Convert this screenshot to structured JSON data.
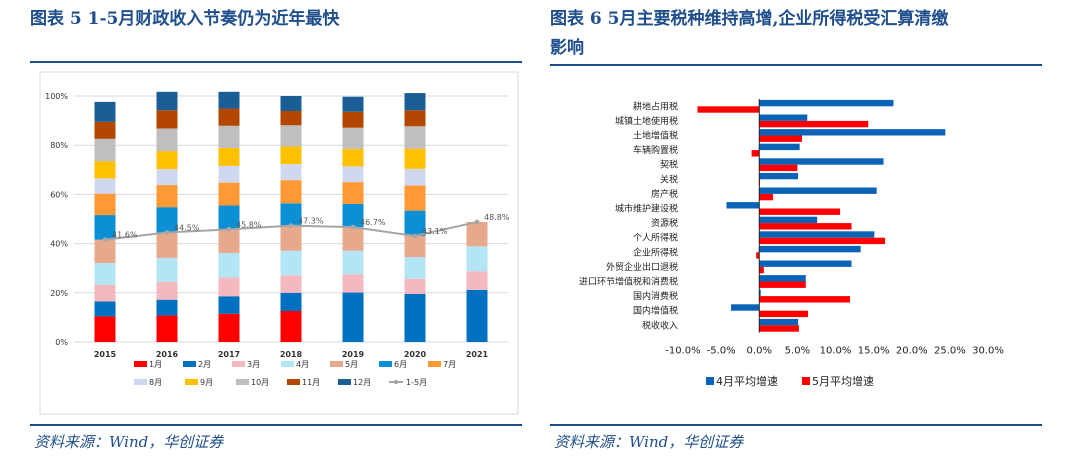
{
  "left": {
    "title": "图表 5   1-5月财政收入节奏仍为近年最快",
    "source": "资料来源：Wind，华创证券",
    "chart_data": {
      "type": "bar",
      "stacked": true,
      "years": [
        "2015",
        "2016",
        "2017",
        "2018",
        "2019",
        "2020",
        "2021"
      ],
      "yticks": [
        "0%",
        "20%",
        "40%",
        "60%",
        "80%",
        "100%"
      ],
      "ylim": [
        0,
        105
      ],
      "months": [
        {
          "name": "1月",
          "color": "#ff0000",
          "values": [
            10.4,
            10.8,
            11.5,
            12.6,
            0,
            0,
            0
          ]
        },
        {
          "name": "2月",
          "color": "#0070c0",
          "values": [
            6.1,
            6.4,
            7.1,
            7.4,
            20.1,
            19.6,
            21.2
          ]
        },
        {
          "name": "3月",
          "color": "#f4b8c0",
          "values": [
            6.8,
            7.3,
            7.6,
            7.1,
            7.4,
            6.1,
            7.6
          ]
        },
        {
          "name": "4月",
          "color": "#b3e5f5",
          "values": [
            8.8,
            9.7,
            10.0,
            10.0,
            9.6,
            8.8,
            10.1
          ]
        },
        {
          "name": "5月",
          "color": "#e7a98b",
          "values": [
            9.5,
            10.3,
            9.6,
            10.2,
            9.6,
            8.6,
            9.9
          ]
        },
        {
          "name": "6月",
          "color": "#0d8fd6",
          "values": [
            10.0,
            10.3,
            9.7,
            9.1,
            9.4,
            10.3,
            0
          ]
        },
        {
          "name": "7月",
          "color": "#ff9933",
          "values": [
            8.7,
            9.0,
            9.3,
            9.4,
            8.9,
            10.2,
            0
          ]
        },
        {
          "name": "8月",
          "color": "#d0d8f0",
          "values": [
            6.2,
            6.5,
            6.8,
            6.5,
            6.4,
            6.8,
            0
          ]
        },
        {
          "name": "9月",
          "color": "#ffc000",
          "values": [
            7.0,
            7.3,
            7.3,
            7.2,
            7.1,
            8.2,
            0
          ]
        },
        {
          "name": "10月",
          "color": "#bfbfbf",
          "values": [
            9.1,
            9.2,
            9.0,
            8.6,
            8.6,
            9.1,
            0
          ]
        },
        {
          "name": "11月",
          "color": "#b34700",
          "values": [
            6.9,
            7.4,
            7.0,
            5.8,
            6.5,
            6.5,
            0
          ]
        },
        {
          "name": "12月",
          "color": "#1b5e95",
          "values": [
            8.1,
            7.5,
            6.8,
            6.1,
            6.1,
            7.0,
            0
          ]
        }
      ],
      "cumulative": {
        "name": "1-5月",
        "color": "#a6a6a6",
        "values": [
          41.6,
          44.5,
          45.8,
          47.3,
          46.7,
          43.1,
          48.8
        ],
        "labels": [
          "41.6%",
          "44.5%",
          "45.8%",
          "47.3%",
          "46.7%",
          "43.1%",
          "48.8%"
        ]
      }
    }
  },
  "right": {
    "title_line1": "图表 6   5月主要税种维持高增,企业所得税受汇算清缴",
    "title_line2": "影响",
    "source": "资料来源：Wind，华创证券",
    "chart_data": {
      "type": "bar",
      "orientation": "horizontal",
      "categories": [
        "耕地占用税",
        "城镇土地使用税",
        "土地增值税",
        "车辆购置税",
        "契税",
        "关税",
        "房产税",
        "城市维护建设税",
        "资源税",
        "个人所得税",
        "企业所得税",
        "外贸企业出口退税",
        "进口环节增值税和消费税",
        "国内消费税",
        "国内增值税",
        "税收收入"
      ],
      "series": [
        {
          "name": "4月平均增速",
          "color": "#0b63b7",
          "values": [
            17.6,
            6.3,
            24.4,
            5.3,
            16.3,
            5.1,
            15.4,
            -4.3,
            7.6,
            15.1,
            13.3,
            12.1,
            6.1,
            0.2,
            -3.7,
            5.1
          ]
        },
        {
          "name": "5月平均增速",
          "color": "#ff0000",
          "values": [
            -8.1,
            14.3,
            5.6,
            -1.0,
            5.0,
            0.1,
            1.8,
            10.6,
            12.1,
            16.5,
            -0.4,
            0.6,
            6.1,
            11.9,
            6.4,
            5.2
          ]
        }
      ],
      "xticks": [
        "-10.0%",
        "-5.0%",
        "0.0%",
        "5.0%",
        "10.0%",
        "15.0%",
        "20.0%",
        "25.0%",
        "30.0%"
      ],
      "xlim": [
        -10,
        30
      ]
    }
  }
}
